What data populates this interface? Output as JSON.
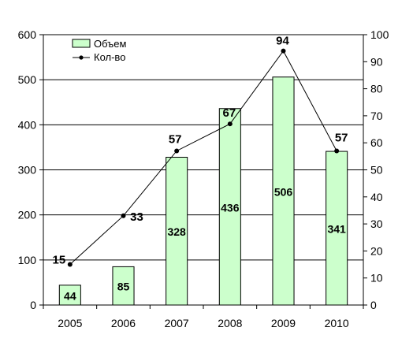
{
  "chart_data": {
    "type": "bar",
    "categories": [
      "2005",
      "2006",
      "2007",
      "2008",
      "2009",
      "2010"
    ],
    "series": [
      {
        "name": "Объем",
        "type": "bar",
        "axis": "left",
        "color": "#ccffcc",
        "values": [
          44,
          85,
          328,
          436,
          506,
          341
        ],
        "labels": [
          "44",
          "85",
          "328",
          "436",
          "506",
          "341"
        ]
      },
      {
        "name": "Кол-во",
        "type": "line",
        "axis": "right",
        "color": "#000000",
        "values": [
          15,
          33,
          57,
          67,
          94,
          57
        ],
        "labels": [
          "15",
          "33",
          "57",
          "67",
          "94",
          "57"
        ]
      }
    ],
    "y_left": {
      "min": 0,
      "max": 600,
      "step": 100,
      "ticks": [
        "0",
        "100",
        "200",
        "300",
        "400",
        "500",
        "600"
      ]
    },
    "y_right": {
      "min": 0,
      "max": 100,
      "step": 10,
      "ticks": [
        "0",
        "10",
        "20",
        "30",
        "40",
        "50",
        "60",
        "70",
        "80",
        "90",
        "100"
      ]
    },
    "grid": true,
    "legend_position": "top-left",
    "title": "",
    "xlabel": "",
    "ylabel": ""
  }
}
